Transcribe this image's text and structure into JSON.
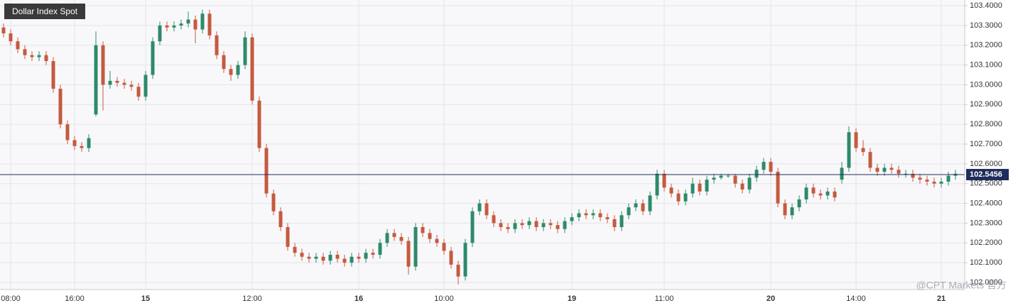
{
  "chart_data": {
    "type": "candlestick",
    "title": "Dollar Index Spot",
    "watermark": "@CPT Markets 官方",
    "up_color": "#2e8a6a",
    "down_color": "#c55a3f",
    "last_price": 102.5456,
    "last_price_color": "#1f2d5c",
    "grid": true,
    "ylim": [
      101.964,
      103.429
    ],
    "yticks": [
      {
        "value": 103.4,
        "label": "103.4000"
      },
      {
        "value": 103.3,
        "label": "103.3000"
      },
      {
        "value": 103.2,
        "label": "103.2000"
      },
      {
        "value": 103.1,
        "label": "103.1000"
      },
      {
        "value": 103.0,
        "label": "103.0000"
      },
      {
        "value": 102.9,
        "label": "102.9000"
      },
      {
        "value": 102.8,
        "label": "102.8000"
      },
      {
        "value": 102.7,
        "label": "102.7000"
      },
      {
        "value": 102.6,
        "label": "102.6000"
      },
      {
        "value": 102.5,
        "label": "102.5000"
      },
      {
        "value": 102.4,
        "label": "102.4000"
      },
      {
        "value": 102.3,
        "label": "102.3000"
      },
      {
        "value": 102.2,
        "label": "102.2000"
      },
      {
        "value": 102.1,
        "label": "102.1000"
      },
      {
        "value": 102.0,
        "label": "102.0000"
      }
    ],
    "categories": [
      null,
      "08:00",
      null,
      null,
      null,
      null,
      null,
      null,
      null,
      null,
      "16:00",
      null,
      null,
      null,
      null,
      null,
      null,
      null,
      null,
      null,
      "15",
      null,
      null,
      null,
      null,
      null,
      null,
      null,
      null,
      null,
      null,
      null,
      null,
      null,
      null,
      "12:00",
      null,
      null,
      null,
      null,
      null,
      null,
      null,
      null,
      null,
      null,
      null,
      null,
      null,
      null,
      "16",
      null,
      null,
      null,
      null,
      null,
      null,
      null,
      null,
      null,
      null,
      null,
      "10:00",
      null,
      null,
      null,
      null,
      null,
      null,
      null,
      null,
      null,
      null,
      null,
      null,
      null,
      null,
      null,
      null,
      null,
      "19",
      null,
      null,
      null,
      null,
      null,
      null,
      null,
      null,
      null,
      null,
      null,
      null,
      "11:00",
      null,
      null,
      null,
      null,
      null,
      null,
      null,
      null,
      null,
      null,
      null,
      null,
      null,
      null,
      "20",
      null,
      null,
      null,
      null,
      null,
      null,
      null,
      null,
      null,
      null,
      null,
      "14:00",
      null,
      null,
      null,
      null,
      null,
      null,
      null,
      null,
      null,
      null,
      null,
      "21",
      null,
      null
    ],
    "open": [
      103.29,
      103.26,
      103.22,
      103.18,
      103.15,
      103.14,
      103.15,
      103.12,
      102.98,
      102.8,
      102.72,
      102.69,
      102.68,
      102.85,
      103.2,
      103.0,
      103.02,
      103.01,
      103.0,
      102.99,
      102.94,
      103.05,
      103.22,
      103.3,
      103.29,
      103.3,
      103.31,
      103.33,
      103.28,
      103.36,
      103.25,
      103.15,
      103.08,
      103.05,
      103.1,
      103.24,
      102.92,
      102.68,
      102.45,
      102.36,
      102.28,
      102.18,
      102.15,
      102.13,
      102.12,
      102.13,
      102.11,
      102.14,
      102.12,
      102.1,
      102.13,
      102.12,
      102.15,
      102.14,
      102.2,
      102.25,
      102.23,
      102.21,
      102.08,
      102.28,
      102.25,
      102.22,
      102.2,
      102.16,
      102.09,
      102.03,
      102.2,
      102.36,
      102.4,
      102.34,
      102.3,
      102.28,
      102.27,
      102.3,
      102.29,
      102.31,
      102.28,
      102.3,
      102.29,
      102.27,
      102.31,
      102.33,
      102.35,
      102.34,
      102.35,
      102.33,
      102.32,
      102.28,
      102.34,
      102.38,
      102.4,
      102.36,
      102.44,
      102.55,
      102.48,
      102.45,
      102.41,
      102.45,
      102.5,
      102.46,
      102.52,
      102.53,
      102.54,
      102.54,
      102.5,
      102.47,
      102.53,
      102.57,
      102.61,
      102.56,
      102.4,
      102.34,
      102.38,
      102.42,
      102.48,
      102.45,
      102.44,
      102.46,
      102.52,
      102.58,
      102.76,
      102.68,
      102.66,
      102.58,
      102.56,
      102.58,
      102.57,
      102.55,
      102.55,
      102.53,
      102.52,
      102.51,
      102.5,
      102.51,
      102.54
    ],
    "high": [
      103.31,
      103.28,
      103.24,
      103.2,
      103.17,
      103.17,
      103.17,
      103.14,
      103.0,
      102.82,
      102.74,
      102.71,
      102.75,
      103.27,
      103.22,
      103.07,
      103.04,
      103.03,
      103.02,
      103.01,
      103.07,
      103.24,
      103.32,
      103.32,
      103.32,
      103.33,
      103.37,
      103.35,
      103.38,
      103.38,
      103.27,
      103.17,
      103.1,
      103.12,
      103.27,
      103.26,
      102.94,
      102.7,
      102.47,
      102.38,
      102.3,
      102.2,
      102.17,
      102.15,
      102.15,
      102.15,
      102.16,
      102.16,
      102.14,
      102.15,
      102.15,
      102.17,
      102.17,
      102.22,
      102.27,
      102.27,
      102.25,
      102.23,
      102.3,
      102.3,
      102.27,
      102.24,
      102.22,
      102.18,
      102.11,
      102.22,
      102.38,
      102.42,
      102.42,
      102.36,
      102.32,
      102.3,
      102.32,
      102.32,
      102.33,
      102.33,
      102.32,
      102.32,
      102.31,
      102.33,
      102.35,
      102.37,
      102.37,
      102.37,
      102.37,
      102.35,
      102.34,
      102.36,
      102.4,
      102.42,
      102.42,
      102.46,
      102.57,
      102.57,
      102.5,
      102.47,
      102.47,
      102.53,
      102.52,
      102.54,
      102.55,
      102.55,
      102.55,
      102.55,
      102.52,
      102.55,
      102.59,
      102.63,
      102.63,
      102.58,
      102.42,
      102.4,
      102.44,
      102.5,
      102.5,
      102.47,
      102.48,
      102.48,
      102.61,
      102.79,
      102.78,
      102.72,
      102.68,
      102.6,
      102.6,
      102.6,
      102.59,
      102.57,
      102.57,
      102.55,
      102.54,
      102.53,
      102.53,
      102.56,
      102.57
    ],
    "low": [
      103.24,
      103.2,
      103.16,
      103.13,
      103.12,
      103.12,
      103.1,
      102.96,
      102.78,
      102.7,
      102.67,
      102.66,
      102.66,
      102.84,
      102.87,
      102.98,
      102.99,
      102.98,
      102.97,
      102.92,
      102.92,
      103.03,
      103.2,
      103.27,
      103.27,
      103.28,
      103.29,
      103.21,
      103.26,
      103.23,
      103.13,
      103.06,
      103.02,
      103.03,
      103.08,
      102.9,
      102.66,
      102.43,
      102.34,
      102.26,
      102.16,
      102.13,
      102.11,
      102.1,
      102.1,
      102.09,
      102.09,
      102.1,
      102.08,
      102.08,
      102.1,
      102.1,
      102.12,
      102.12,
      102.18,
      102.21,
      102.19,
      102.04,
      102.06,
      102.23,
      102.2,
      102.18,
      102.14,
      102.07,
      101.99,
      102.01,
      102.18,
      102.34,
      102.32,
      102.28,
      102.26,
      102.25,
      102.25,
      102.27,
      102.27,
      102.26,
      102.26,
      102.27,
      102.25,
      102.25,
      102.29,
      102.31,
      102.32,
      102.32,
      102.31,
      102.3,
      102.26,
      102.26,
      102.32,
      102.36,
      102.34,
      102.34,
      102.42,
      102.46,
      102.43,
      102.39,
      102.39,
      102.43,
      102.44,
      102.44,
      102.5,
      102.52,
      102.53,
      102.48,
      102.45,
      102.45,
      102.51,
      102.55,
      102.54,
      102.38,
      102.32,
      102.32,
      102.36,
      102.4,
      102.43,
      102.42,
      102.42,
      102.41,
      102.5,
      102.56,
      102.66,
      102.64,
      102.56,
      102.54,
      102.54,
      102.55,
      102.53,
      102.53,
      102.51,
      102.5,
      102.49,
      102.48,
      102.48,
      102.49,
      102.52
    ],
    "close": [
      103.26,
      103.22,
      103.18,
      103.15,
      103.14,
      103.15,
      103.12,
      102.98,
      102.8,
      102.72,
      102.69,
      102.68,
      102.73,
      103.2,
      103.0,
      103.02,
      103.01,
      103.0,
      102.99,
      102.94,
      103.05,
      103.22,
      103.3,
      103.29,
      103.3,
      103.31,
      103.33,
      103.28,
      103.36,
      103.25,
      103.15,
      103.08,
      103.05,
      103.1,
      103.24,
      102.92,
      102.68,
      102.45,
      102.36,
      102.28,
      102.18,
      102.15,
      102.13,
      102.12,
      102.13,
      102.11,
      102.14,
      102.12,
      102.1,
      102.13,
      102.12,
      102.15,
      102.14,
      102.2,
      102.25,
      102.23,
      102.21,
      102.08,
      102.28,
      102.25,
      102.22,
      102.2,
      102.16,
      102.09,
      102.03,
      102.2,
      102.36,
      102.4,
      102.34,
      102.3,
      102.28,
      102.27,
      102.3,
      102.29,
      102.31,
      102.28,
      102.3,
      102.29,
      102.27,
      102.31,
      102.33,
      102.35,
      102.34,
      102.35,
      102.33,
      102.32,
      102.28,
      102.34,
      102.38,
      102.4,
      102.36,
      102.44,
      102.55,
      102.48,
      102.45,
      102.41,
      102.45,
      102.5,
      102.46,
      102.52,
      102.53,
      102.54,
      102.54,
      102.5,
      102.47,
      102.53,
      102.57,
      102.61,
      102.56,
      102.4,
      102.34,
      102.38,
      102.42,
      102.48,
      102.45,
      102.44,
      102.46,
      102.43,
      102.58,
      102.76,
      102.68,
      102.66,
      102.58,
      102.56,
      102.58,
      102.57,
      102.55,
      102.55,
      102.53,
      102.52,
      102.51,
      102.5,
      102.51,
      102.54,
      102.55
    ]
  }
}
